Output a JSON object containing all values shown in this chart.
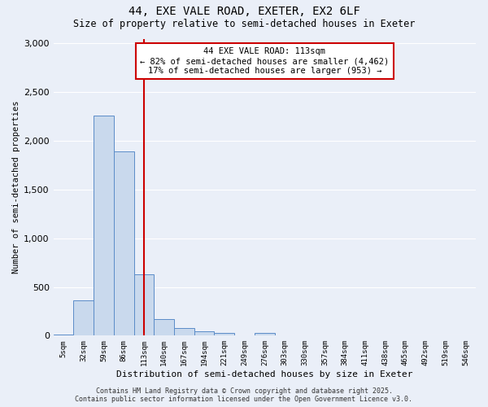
{
  "title": "44, EXE VALE ROAD, EXETER, EX2 6LF",
  "subtitle": "Size of property relative to semi-detached houses in Exeter",
  "xlabel": "Distribution of semi-detached houses by size in Exeter",
  "ylabel": "Number of semi-detached properties",
  "bin_labels": [
    "5sqm",
    "32sqm",
    "59sqm",
    "86sqm",
    "113sqm",
    "140sqm",
    "167sqm",
    "194sqm",
    "221sqm",
    "249sqm",
    "276sqm",
    "303sqm",
    "330sqm",
    "357sqm",
    "384sqm",
    "411sqm",
    "438sqm",
    "465sqm",
    "492sqm",
    "519sqm",
    "546sqm"
  ],
  "bar_values": [
    10,
    360,
    2260,
    1890,
    630,
    170,
    75,
    45,
    25,
    5,
    30,
    0,
    0,
    0,
    0,
    0,
    0,
    0,
    0,
    0,
    0
  ],
  "bar_color": "#c9d9ed",
  "bar_edge_color": "#5b8cc8",
  "property_line_x": 4,
  "property_line_label": "44 EXE VALE ROAD: 113sqm",
  "annotation_line1": "← 82% of semi-detached houses are smaller (4,462)",
  "annotation_line2": "17% of semi-detached houses are larger (953) →",
  "red_line_color": "#cc0000",
  "annotation_box_edge": "#cc0000",
  "ylim": [
    0,
    3050
  ],
  "yticks": [
    0,
    500,
    1000,
    1500,
    2000,
    2500,
    3000
  ],
  "bg_color": "#eaeff8",
  "grid_color": "#ffffff",
  "footer_line1": "Contains HM Land Registry data © Crown copyright and database right 2025.",
  "footer_line2": "Contains public sector information licensed under the Open Government Licence v3.0."
}
